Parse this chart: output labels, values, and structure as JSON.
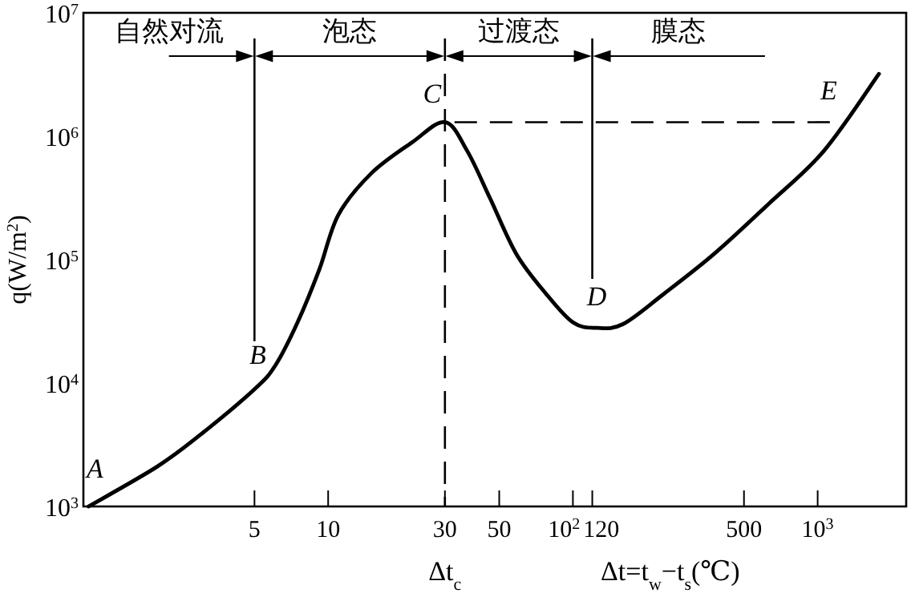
{
  "chart_data": {
    "type": "line",
    "xlabel": "Δt=t$_{w}$−t$_{s}$(℃)",
    "ylabel": "q(W/m$^{2}$)",
    "log": "xy",
    "xlim": [
      1,
      2300
    ],
    "ylim": [
      1000,
      10000000
    ],
    "xticks": [
      5,
      10,
      30,
      50,
      {
        "value": 100,
        "label": "10$^{2}$"
      },
      120,
      500,
      {
        "value": 1000,
        "label": "10$^{3}$"
      }
    ],
    "yticks": [
      {
        "value": 1000,
        "label": "10$^{3}$"
      },
      {
        "value": 10000,
        "label": "10$^{4}$"
      },
      {
        "value": 100000,
        "label": "10$^{5}$"
      },
      {
        "value": 1000000,
        "label": "10$^{6}$"
      },
      {
        "value": 10000000,
        "label": "10$^{7}$"
      }
    ],
    "x": [
      1.05,
      2,
      3,
      5,
      6.1,
      7.5,
      9.2,
      11,
      15,
      22,
      30,
      37,
      46,
      58.6,
      77,
      100,
      125,
      160,
      233,
      379,
      627,
      1060,
      1780
    ],
    "series": [
      {
        "color": "#000000",
        "values": [
          1000,
          2100,
          3800,
          8900,
          14000,
          31000,
          83000,
          230000,
          500000,
          890000,
          1300000,
          760000,
          310000,
          112000,
          54000,
          31000,
          28000,
          30000,
          52000,
          112000,
          280000,
          760000,
          3200000
        ]
      }
    ],
    "ref_lines": [
      {
        "axis": "x",
        "value": 5,
        "color": "#000000"
      },
      {
        "axis": "x",
        "value": 30,
        "color": "#000000",
        "line_style": "dashed"
      },
      {
        "axis": "x",
        "value": 120,
        "color": "#000000"
      },
      {
        "axis": "y",
        "value": 1300000,
        "color": "#000000",
        "line_style": "dashed"
      }
    ],
    "annotations": [
      "自然对流",
      "泡态",
      "过渡态",
      "膜态",
      {
        "text": "A",
        "x": 1.05,
        "y": 1000
      },
      {
        "text": "B",
        "x": 5,
        "y": 8900
      },
      {
        "text": "C",
        "x": 30,
        "y": 1300000
      },
      {
        "text": "D",
        "x": 125,
        "y": 28000
      },
      {
        "text": "E",
        "x": 1290,
        "y": 1300000
      },
      "Δt$_{c}$"
    ],
    "grid": false,
    "marker": "none",
    "line_style": "solid"
  }
}
